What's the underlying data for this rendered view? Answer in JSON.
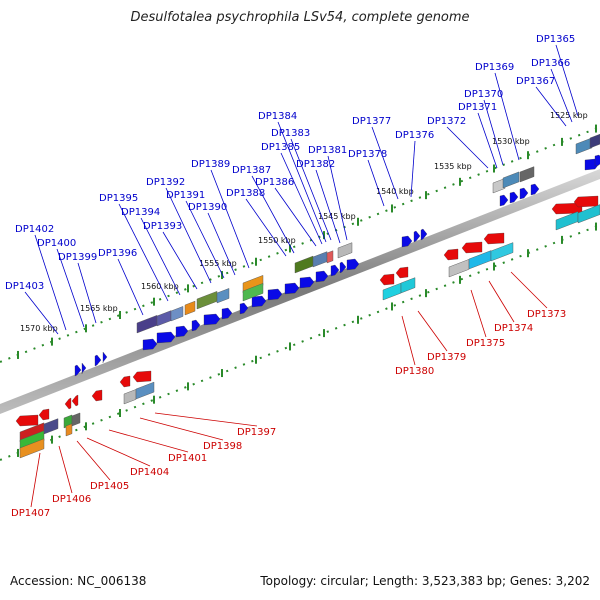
{
  "title": "Desulfotalea psychrophila LSv54, complete genome",
  "footer": {
    "accession": "Accession: NC_006138",
    "summary": "Topology: circular; Length: 3,523,383 bp; Genes: 3,202"
  },
  "colors": {
    "top_strand_label": "#0000cc",
    "bottom_strand_label": "#cc0000",
    "top_arrow": "#0a0ae6",
    "bottom_arrow": "#e60a0a",
    "backbone": "#888888",
    "tick": "#2a8a2a"
  },
  "scale_labels": [
    "1525 kbp",
    "1530 kbp",
    "1535 kbp",
    "1540 kbp",
    "1545 kbp",
    "1550 kbp",
    "1555 kbp",
    "1560 kbp",
    "1565 kbp",
    "1570 kbp"
  ],
  "top_genes": [
    "DP1365",
    "DP1366",
    "DP1367",
    "DP1369",
    "DP1370",
    "DP1371",
    "DP1372",
    "DP1376",
    "DP1377",
    "DP1378",
    "DP1381",
    "DP1382",
    "DP1383",
    "DP1384",
    "DP1385",
    "DP1386",
    "DP1387",
    "DP1388",
    "DP1389",
    "DP1390",
    "DP1391",
    "DP1392",
    "DP1393",
    "DP1394",
    "DP1395",
    "DP1396",
    "DP1399",
    "DP1400",
    "DP1402",
    "DP1403"
  ],
  "bottom_genes": [
    "DP1373",
    "DP1374",
    "DP1375",
    "DP1379",
    "DP1380",
    "DP1397",
    "DP1398",
    "DP1401",
    "DP1404",
    "DP1405",
    "DP1406",
    "DP1407"
  ]
}
